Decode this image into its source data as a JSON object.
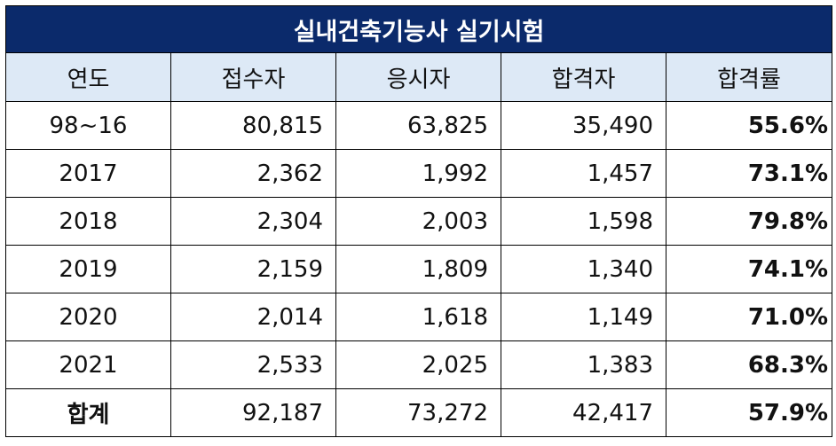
{
  "title": "실내건축기능사 실기시험",
  "headers": [
    "연도",
    "접수자",
    "응시자",
    "합격자",
    "합격률"
  ],
  "rows": [
    {
      "year": "98~16",
      "applicants": "80,815",
      "examinees": "63,825",
      "passers": "35,490",
      "rate": "55.6%"
    },
    {
      "year": "2017",
      "applicants": "2,362",
      "examinees": "1,992",
      "passers": "1,457",
      "rate": "73.1%"
    },
    {
      "year": "2018",
      "applicants": "2,304",
      "examinees": "2,003",
      "passers": "1,598",
      "rate": "79.8%"
    },
    {
      "year": "2019",
      "applicants": "2,159",
      "examinees": "1,809",
      "passers": "1,340",
      "rate": "74.1%"
    },
    {
      "year": "2020",
      "applicants": "2,014",
      "examinees": "1,618",
      "passers": "1,149",
      "rate": "71.0%"
    },
    {
      "year": "2021",
      "applicants": "2,533",
      "examinees": "2,025",
      "passers": "1,383",
      "rate": "68.3%"
    },
    {
      "year": "합계",
      "applicants": "92,187",
      "examinees": "73,272",
      "passers": "42,417",
      "rate": "57.9%"
    }
  ],
  "colors": {
    "title_bg": "#0b2a6b",
    "header_bg": "#dde9f6"
  }
}
